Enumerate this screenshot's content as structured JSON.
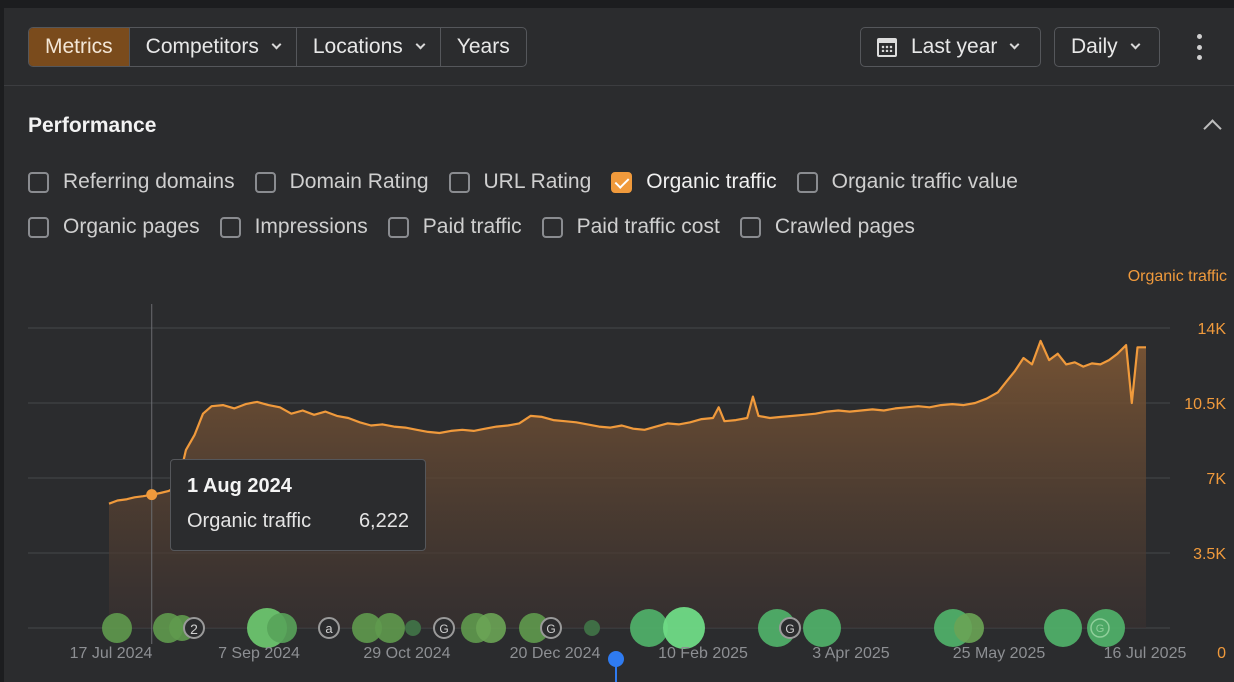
{
  "toolbar": {
    "tabs": [
      {
        "label": "Metrics",
        "active": true,
        "dropdown": false
      },
      {
        "label": "Competitors",
        "active": false,
        "dropdown": true
      },
      {
        "label": "Locations",
        "active": false,
        "dropdown": true
      },
      {
        "label": "Years",
        "active": false,
        "dropdown": false
      }
    ],
    "date_range": "Last year",
    "interval": "Daily"
  },
  "performance": {
    "title": "Performance",
    "metrics": [
      {
        "label": "Referring domains",
        "checked": false
      },
      {
        "label": "Domain Rating",
        "checked": false
      },
      {
        "label": "URL Rating",
        "checked": false
      },
      {
        "label": "Organic traffic",
        "checked": true
      },
      {
        "label": "Organic traffic value",
        "checked": false
      },
      {
        "label": "Organic pages",
        "checked": false
      },
      {
        "label": "Impressions",
        "checked": false
      },
      {
        "label": "Paid traffic",
        "checked": false
      },
      {
        "label": "Paid traffic cost",
        "checked": false
      },
      {
        "label": "Crawled pages",
        "checked": false
      }
    ]
  },
  "tooltip": {
    "date": "1 Aug 2024",
    "metric": "Organic traffic",
    "value": "6,222"
  },
  "colors": {
    "accent": "#f09a3c",
    "active_tab": "#7a4b1c",
    "marker_green": "#5fbf6a",
    "marker_blue": "#2f7bf0"
  },
  "chart_data": {
    "type": "area",
    "title": "Performance",
    "series_name": "Organic traffic",
    "y_axis": {
      "ticks": [
        "0",
        "3.5K",
        "7K",
        "10.5K",
        "14K"
      ],
      "range": [
        0,
        14000
      ],
      "position": "right"
    },
    "x_axis": {
      "ticks": [
        "17 Jul 2024",
        "7 Sep 2024",
        "29 Oct 2024",
        "20 Dec 2024",
        "10 Feb 2025",
        "3 Apr 2025",
        "25 May 2025",
        "16 Jul 2025"
      ]
    },
    "x_range_days": [
      0,
      364
    ],
    "points": [
      [
        0,
        5800
      ],
      [
        3,
        5950
      ],
      [
        6,
        6000
      ],
      [
        9,
        6100
      ],
      [
        12,
        6150
      ],
      [
        15,
        6222
      ],
      [
        18,
        6300
      ],
      [
        21,
        6400
      ],
      [
        24,
        6600
      ],
      [
        27,
        8300
      ],
      [
        30,
        9000
      ],
      [
        33,
        10000
      ],
      [
        36,
        10350
      ],
      [
        40,
        10400
      ],
      [
        44,
        10250
      ],
      [
        48,
        10450
      ],
      [
        52,
        10550
      ],
      [
        56,
        10400
      ],
      [
        60,
        10300
      ],
      [
        64,
        10000
      ],
      [
        68,
        10150
      ],
      [
        72,
        9950
      ],
      [
        76,
        10100
      ],
      [
        80,
        9900
      ],
      [
        84,
        9800
      ],
      [
        88,
        9600
      ],
      [
        92,
        9450
      ],
      [
        96,
        9500
      ],
      [
        100,
        9400
      ],
      [
        104,
        9350
      ],
      [
        108,
        9250
      ],
      [
        112,
        9150
      ],
      [
        116,
        9100
      ],
      [
        120,
        9200
      ],
      [
        124,
        9250
      ],
      [
        128,
        9200
      ],
      [
        132,
        9300
      ],
      [
        136,
        9400
      ],
      [
        140,
        9450
      ],
      [
        144,
        9550
      ],
      [
        148,
        9900
      ],
      [
        152,
        9850
      ],
      [
        156,
        9700
      ],
      [
        160,
        9650
      ],
      [
        164,
        9600
      ],
      [
        168,
        9500
      ],
      [
        172,
        9400
      ],
      [
        176,
        9350
      ],
      [
        180,
        9450
      ],
      [
        184,
        9300
      ],
      [
        188,
        9250
      ],
      [
        192,
        9400
      ],
      [
        196,
        9550
      ],
      [
        200,
        9500
      ],
      [
        204,
        9600
      ],
      [
        208,
        9750
      ],
      [
        212,
        9800
      ],
      [
        214,
        10300
      ],
      [
        216,
        9650
      ],
      [
        220,
        9700
      ],
      [
        224,
        9800
      ],
      [
        226,
        10800
      ],
      [
        228,
        9900
      ],
      [
        232,
        9800
      ],
      [
        236,
        9850
      ],
      [
        240,
        9900
      ],
      [
        244,
        9950
      ],
      [
        248,
        10000
      ],
      [
        252,
        10100
      ],
      [
        256,
        10150
      ],
      [
        260,
        10100
      ],
      [
        264,
        10150
      ],
      [
        268,
        10200
      ],
      [
        272,
        10150
      ],
      [
        276,
        10250
      ],
      [
        280,
        10300
      ],
      [
        284,
        10350
      ],
      [
        288,
        10300
      ],
      [
        292,
        10400
      ],
      [
        296,
        10450
      ],
      [
        300,
        10400
      ],
      [
        304,
        10500
      ],
      [
        308,
        10700
      ],
      [
        312,
        11000
      ],
      [
        315,
        11500
      ],
      [
        318,
        12000
      ],
      [
        321,
        12600
      ],
      [
        324,
        12300
      ],
      [
        327,
        13400
      ],
      [
        330,
        12500
      ],
      [
        333,
        12800
      ],
      [
        336,
        12300
      ],
      [
        339,
        12400
      ],
      [
        342,
        12200
      ],
      [
        345,
        12350
      ],
      [
        348,
        12300
      ],
      [
        351,
        12500
      ],
      [
        354,
        12800
      ],
      [
        357,
        13200
      ],
      [
        359,
        10500
      ],
      [
        361,
        13100
      ],
      [
        364,
        13100
      ]
    ],
    "tooltip_point": {
      "date": "1 Aug 2024",
      "value": 6222
    }
  }
}
